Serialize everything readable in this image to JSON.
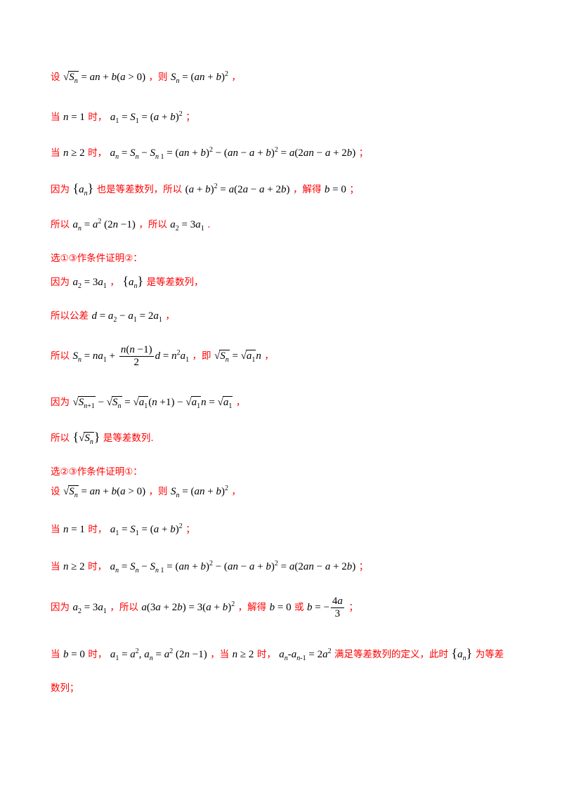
{
  "lines": [
    {
      "prefix": "设",
      "mid": "，则",
      "suffix": "，"
    },
    {
      "prefix": "当",
      "mid": "时，",
      "suffix": "；"
    },
    {
      "prefix": "当",
      "mid": "时，",
      "suffix": "；"
    },
    {
      "prefix": "因为",
      "mid": "也是等差数列，所以",
      "mid2": "，解得",
      "suffix": "；"
    },
    {
      "prefix": "所以",
      "mid": "，所以",
      "suffix": "."
    },
    {
      "heading": "选①③作条件证明②："
    },
    {
      "prefix": "因为",
      "mid": "，",
      "suffix": "是等差数列，"
    },
    {
      "prefix": "所以公差",
      "suffix": "，"
    },
    {
      "prefix": "所以",
      "mid": "，即",
      "suffix": "，"
    },
    {
      "prefix": "因为",
      "suffix": "，"
    },
    {
      "prefix": "所以",
      "suffix": "是等差数列."
    },
    {
      "heading": "选②③作条件证明①："
    },
    {
      "prefix": "设",
      "mid": "，则",
      "suffix": "，"
    },
    {
      "prefix": "当",
      "mid": "时，",
      "suffix": "；"
    },
    {
      "prefix": "当",
      "mid": "时，",
      "suffix": "；"
    },
    {
      "prefix": "因为",
      "mid": "，所以",
      "mid2": "，解得",
      "mid3": "或",
      "suffix": "；"
    },
    {
      "prefix": "当",
      "mid": "时，",
      "mid2": "，当",
      "mid3": "时，",
      "mid4": "满足等差数列的定义，此时",
      "suffix": "为等差"
    },
    {
      "prefix": "数列；"
    }
  ]
}
